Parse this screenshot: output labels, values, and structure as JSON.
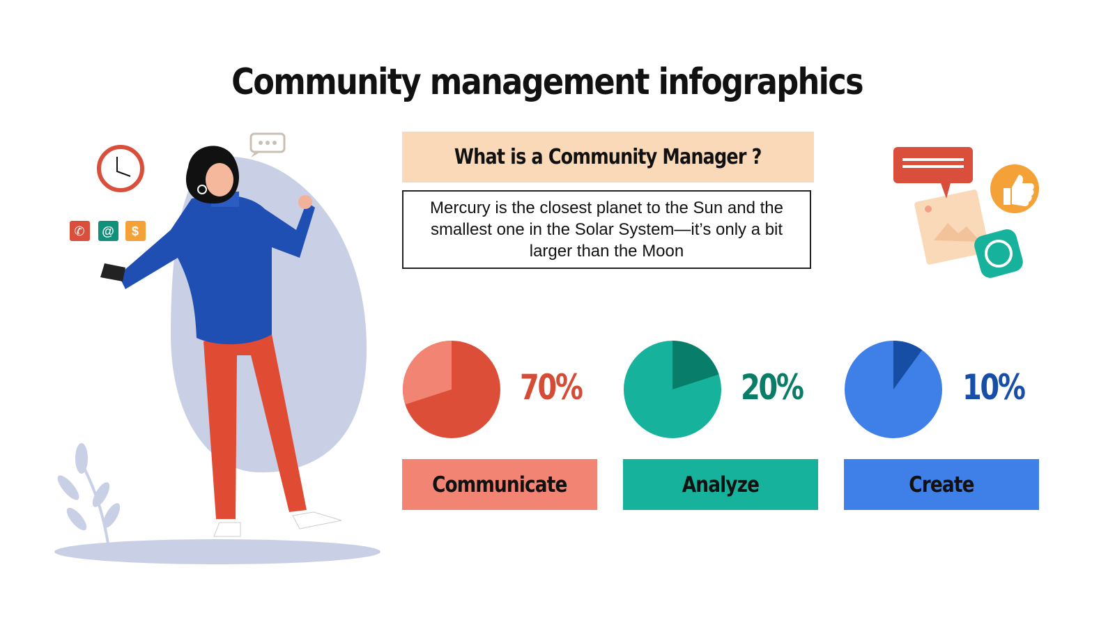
{
  "title": "Community management infographics",
  "question": "What is a Community Manager ?",
  "description": "Mercury is the closest planet to the Sun and the smallest one in the Solar System—it’s only a bit larger than the Moon",
  "chart_data": [
    {
      "type": "pie",
      "label": "Communicate",
      "value_label": "70%",
      "values": [
        70,
        30
      ],
      "colors": {
        "main": "#dc4e38",
        "secondary": "#f28473",
        "text": "#d44c36",
        "box": "#f28473"
      }
    },
    {
      "type": "pie",
      "label": "Analyze",
      "value_label": "20%",
      "values": [
        20,
        80
      ],
      "colors": {
        "main": "#087e6a",
        "secondary": "#16b29b",
        "text": "#0a7d68",
        "box": "#16b29b"
      }
    },
    {
      "type": "pie",
      "label": "Create",
      "value_label": "10%",
      "values": [
        10,
        90
      ],
      "colors": {
        "main": "#164ea6",
        "secondary": "#3f7fe8",
        "text": "#174ea8",
        "box": "#3f7fe8"
      }
    }
  ],
  "icons": [
    "clock-icon",
    "phone-icon",
    "at-icon",
    "dollar-icon",
    "chat-bubble-icon",
    "message-icon",
    "thumbs-up-icon",
    "image-post-icon",
    "whatsapp-icon"
  ],
  "icon_glyphs": {
    "at": "@",
    "dollar": "$"
  }
}
